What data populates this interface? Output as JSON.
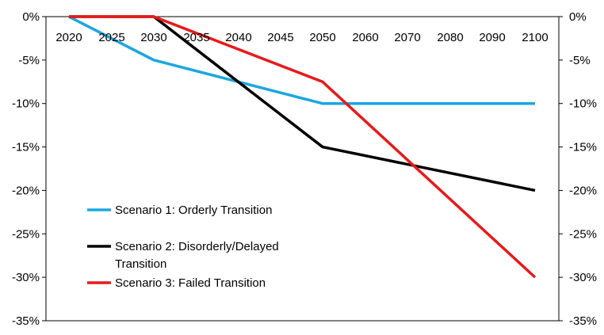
{
  "chart_data": {
    "type": "line",
    "title": "",
    "xlabel": "",
    "ylabel": "",
    "ylim": [
      -0.35,
      0
    ],
    "y_ticks": [
      "0%",
      "-5%",
      "-10%",
      "-15%",
      "-20%",
      "-25%",
      "-30%",
      "-35%"
    ],
    "y_tick_values": [
      0,
      -0.05,
      -0.1,
      -0.15,
      -0.2,
      -0.25,
      -0.3,
      -0.35
    ],
    "y_axis_right_duplicate": true,
    "x_tick_labels": [
      "2020",
      "2025",
      "2030",
      "2035",
      "2040",
      "2045",
      "2050",
      "2060",
      "2070",
      "2080",
      "2090",
      "2100"
    ],
    "x_axis_note": "tick labels placed just below the 0% line; 2020-2050 in 5-year steps, 2050-2100 in 10-year steps at equal spacing",
    "grid": false,
    "legend": {
      "placement": "lower-left",
      "entries": [
        {
          "label_lines": [
            "Scenario 1: Orderly Transition"
          ],
          "color": "#1aa7e0"
        },
        {
          "label_lines": [
            "Scenario 2: Disorderly/Delayed",
            "Transition"
          ],
          "color": "#000000"
        },
        {
          "label_lines": [
            "Scenario 3: Failed Transition"
          ],
          "color": "#e8191b"
        }
      ]
    },
    "series": [
      {
        "name": "Scenario 1: Orderly Transition",
        "color": "#1aa7e0",
        "points": [
          [
            "2020",
            0
          ],
          [
            "2030",
            -0.05
          ],
          [
            "2050",
            -0.1
          ],
          [
            "2100",
            -0.1
          ]
        ]
      },
      {
        "name": "Scenario 2: Disorderly/Delayed Transition",
        "color": "#000000",
        "points": [
          [
            "2020",
            0
          ],
          [
            "2030",
            0
          ],
          [
            "2050",
            -0.15
          ],
          [
            "2100",
            -0.2
          ]
        ]
      },
      {
        "name": "Scenario 3: Failed Transition",
        "color": "#e8191b",
        "points": [
          [
            "2020",
            0
          ],
          [
            "2030",
            0
          ],
          [
            "2050",
            -0.075
          ],
          [
            "2100",
            -0.3
          ]
        ]
      }
    ]
  }
}
